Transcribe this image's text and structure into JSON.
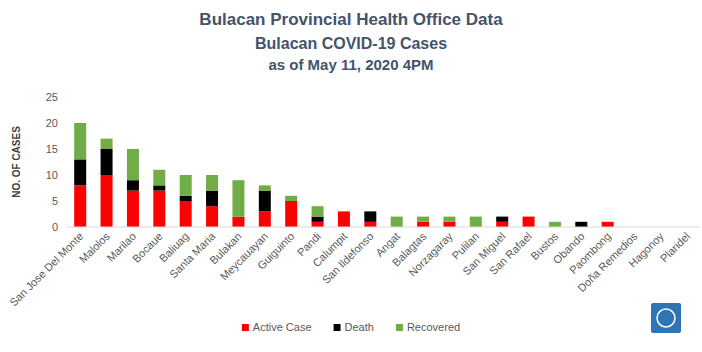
{
  "chart_data": {
    "type": "bar",
    "title": "Bulacan Provincial Health Office Data",
    "subtitle": [
      "Bulacan COVID-19 Cases",
      "as of May 11, 2020 4PM"
    ],
    "y_label": "NO. OF CASES",
    "categories": [
      "San Jose Del Monte",
      "Malolos",
      "Marilao",
      "Bocaue",
      "Baliuag",
      "Santa Maria",
      "Bulakan",
      "Meycauayan",
      "Guiguinto",
      "Pandi",
      "Calumpit",
      "San Ildefonso",
      "Angat",
      "Balagtas",
      "Norzagaray",
      "Pulilan",
      "San Miguel",
      "San Rafael",
      "Bustos",
      "Obando",
      "Paombong",
      "Doña Remedios",
      "Hagonoy",
      "Plaridel"
    ],
    "series": [
      {
        "name": "Active Case",
        "color": "#ff0000",
        "values": [
          8,
          10,
          7,
          7,
          5,
          4,
          2,
          3,
          5,
          1,
          3,
          1,
          0,
          1,
          1,
          0,
          1,
          2,
          0,
          0,
          1,
          0,
          0,
          0
        ]
      },
      {
        "name": "Death",
        "color": "#000000",
        "values": [
          5,
          5,
          2,
          1,
          1,
          3,
          0,
          4,
          0,
          1,
          0,
          2,
          0,
          0,
          0,
          0,
          1,
          0,
          0,
          1,
          0,
          0,
          0,
          0
        ]
      },
      {
        "name": "Recovered",
        "color": "#70ad47",
        "values": [
          7,
          2,
          6,
          3,
          4,
          3,
          7,
          1,
          1,
          2,
          0,
          0,
          2,
          1,
          1,
          2,
          0,
          0,
          1,
          0,
          0,
          0,
          0,
          0
        ]
      }
    ],
    "stacked": true,
    "ylim": [
      0,
      25
    ],
    "yticks": [
      0,
      5,
      10,
      15,
      20,
      25
    ],
    "grid": false,
    "legend": "bottom"
  }
}
